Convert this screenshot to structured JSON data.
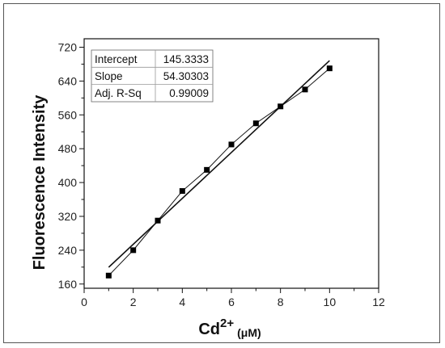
{
  "chart_data": {
    "type": "scatter",
    "xlabel": {
      "main": "Cd",
      "sup": "2+",
      "unit": "(μM)"
    },
    "ylabel": "Fluorescence Intensity",
    "xlim": [
      0,
      12
    ],
    "ylim": [
      150,
      740
    ],
    "x_ticks": [
      0,
      2,
      4,
      6,
      8,
      10,
      12
    ],
    "y_ticks": [
      160,
      240,
      320,
      400,
      480,
      560,
      640,
      720
    ],
    "series": [
      {
        "x": [
          1,
          2,
          3,
          4,
          5,
          6,
          7,
          8,
          9,
          10
        ],
        "y": [
          180,
          240,
          310,
          380,
          430,
          490,
          540,
          580,
          620,
          670
        ]
      }
    ],
    "fit": {
      "intercept": 145.3333,
      "slope": 54.30303,
      "x_range": [
        1,
        10
      ]
    },
    "stats_table": [
      {
        "label": "Intercept",
        "value": "145.3333"
      },
      {
        "label": "Slope",
        "value": "54.30303"
      },
      {
        "label": "Adj. R-Sq",
        "value": "0.99009"
      }
    ],
    "grid": false,
    "legend": "none"
  }
}
